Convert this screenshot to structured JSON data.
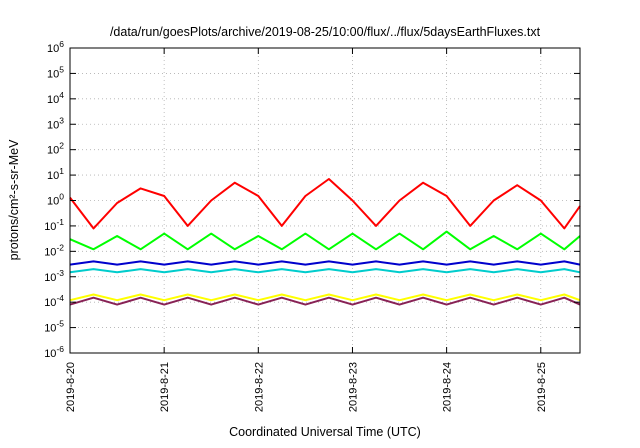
{
  "chart_data": {
    "type": "line",
    "title": "/data/run/goesPlots/archive/2019-08-25/10:00/flux/../flux/5daysEarthFluxes.txt",
    "xlabel": "Coordinated Universal Time (UTC)",
    "ylabel": "protons/cm²-s-sr-MeV",
    "x_tick_labels": [
      "2019-8-20",
      "2019-8-21",
      "2019-8-22",
      "2019-8-23",
      "2019-8-24",
      "2019-8-25"
    ],
    "y_tick_exponents": [
      "6",
      "5",
      "4",
      "3",
      "2",
      "1",
      "0",
      "-1",
      "-2",
      "-3",
      "-4",
      "-5",
      "-6"
    ],
    "y_scale": "log",
    "ylim": [
      1e-06,
      1000000.0
    ],
    "xlim": [
      "2019-08-20 00:00",
      "2019-08-25 10:00"
    ],
    "grid": true,
    "legend": "none",
    "x": [
      "2019-08-20 00:00",
      "2019-08-20 06:00",
      "2019-08-20 12:00",
      "2019-08-20 18:00",
      "2019-08-21 00:00",
      "2019-08-21 06:00",
      "2019-08-21 12:00",
      "2019-08-21 18:00",
      "2019-08-22 00:00",
      "2019-08-22 06:00",
      "2019-08-22 12:00",
      "2019-08-22 18:00",
      "2019-08-23 00:00",
      "2019-08-23 06:00",
      "2019-08-23 12:00",
      "2019-08-23 18:00",
      "2019-08-24 00:00",
      "2019-08-24 06:00",
      "2019-08-24 12:00",
      "2019-08-24 18:00",
      "2019-08-25 00:00",
      "2019-08-25 06:00",
      "2019-08-25 10:00"
    ],
    "series": [
      {
        "color": "#ff0000",
        "values": [
          1.3,
          0.08,
          0.8,
          3.0,
          1.5,
          0.1,
          1.0,
          5.0,
          1.5,
          0.1,
          1.5,
          7.0,
          1.0,
          0.1,
          1.0,
          5.0,
          1.5,
          0.1,
          1.0,
          4.0,
          1.0,
          0.08,
          0.6
        ]
      },
      {
        "color": "#00ff00",
        "values": [
          0.03,
          0.012,
          0.04,
          0.012,
          0.05,
          0.012,
          0.05,
          0.012,
          0.04,
          0.012,
          0.05,
          0.012,
          0.05,
          0.012,
          0.05,
          0.012,
          0.06,
          0.012,
          0.04,
          0.012,
          0.05,
          0.012,
          0.04
        ]
      },
      {
        "color": "#0000cc",
        "values": [
          0.003,
          0.004,
          0.003,
          0.004,
          0.003,
          0.004,
          0.003,
          0.004,
          0.003,
          0.004,
          0.003,
          0.004,
          0.003,
          0.004,
          0.003,
          0.004,
          0.003,
          0.004,
          0.003,
          0.004,
          0.003,
          0.004,
          0.003
        ]
      },
      {
        "color": "#00cccc",
        "values": [
          0.0015,
          0.002,
          0.0015,
          0.002,
          0.0015,
          0.002,
          0.0015,
          0.002,
          0.0015,
          0.002,
          0.0015,
          0.002,
          0.0015,
          0.002,
          0.0015,
          0.002,
          0.0015,
          0.002,
          0.0015,
          0.002,
          0.0015,
          0.002,
          0.0015
        ]
      },
      {
        "color": "#ffff00",
        "values": [
          0.00012,
          0.0002,
          0.00012,
          0.0002,
          0.00012,
          0.0002,
          0.00012,
          0.0002,
          0.00012,
          0.0002,
          0.00012,
          0.0002,
          0.00012,
          0.0002,
          0.00012,
          0.0002,
          0.00012,
          0.0002,
          0.00012,
          0.0002,
          0.00012,
          0.0002,
          0.00012
        ]
      },
      {
        "color": "#882255",
        "values": [
          8e-05,
          0.00015,
          8e-05,
          0.00015,
          8e-05,
          0.00015,
          8e-05,
          0.00015,
          8e-05,
          0.00015,
          8e-05,
          0.00015,
          8e-05,
          0.00015,
          8e-05,
          0.00015,
          8e-05,
          0.00015,
          8e-05,
          0.00015,
          8e-05,
          0.00015,
          8e-05
        ]
      }
    ]
  }
}
